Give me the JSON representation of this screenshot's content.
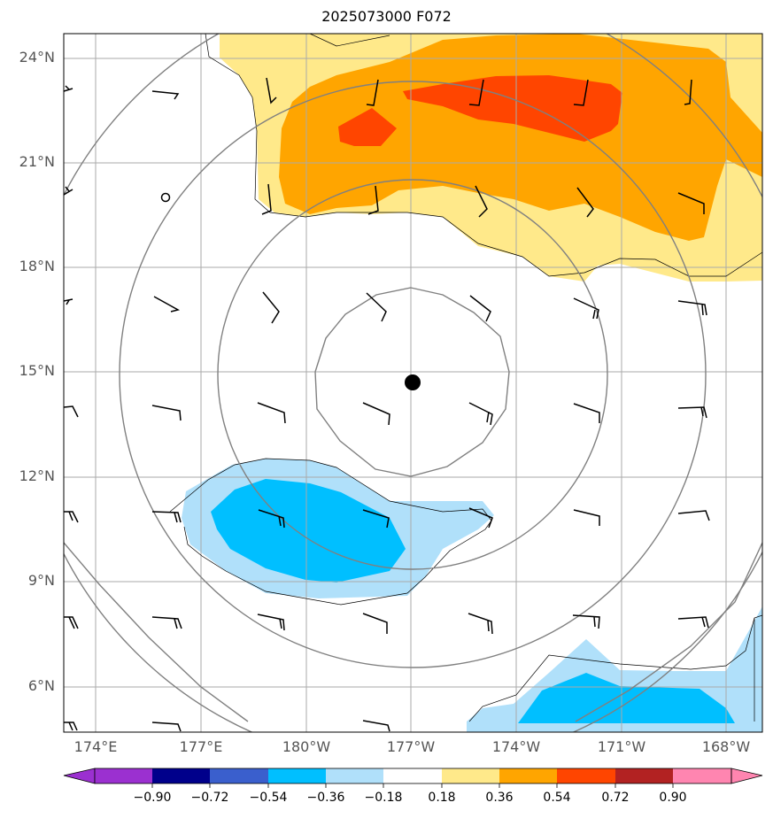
{
  "title": "2025073000 F072",
  "lat_labels": [
    "24°N",
    "21°N",
    "18°N",
    "15°N",
    "12°N",
    "9°N",
    "6°N"
  ],
  "lon_labels": [
    "174°E",
    "177°E",
    "180°W",
    "177°W",
    "174°W",
    "171°W",
    "168°W"
  ],
  "colorbar": {
    "ticks": [
      "−0.90",
      "−0.72",
      "−0.54",
      "−0.36",
      "−0.18",
      "0.18",
      "0.36",
      "0.54",
      "0.72",
      "0.90"
    ],
    "colors": [
      "#9b30d0",
      "#00008b",
      "#3a5fcd",
      "#00bfff",
      "#b0e0fa",
      "#ffffff",
      "#ffe98a",
      "#ffa500",
      "#ff4500",
      "#b22222",
      "#ff85b0"
    ]
  },
  "legend_colors": {
    "positive_1": "#ffe98a",
    "positive_2": "#ffa500",
    "positive_3": "#ff4500",
    "negative_1": "#b0e0fa",
    "negative_2": "#00bfff",
    "contour": "#808080",
    "center_marker": "#000000"
  }
}
